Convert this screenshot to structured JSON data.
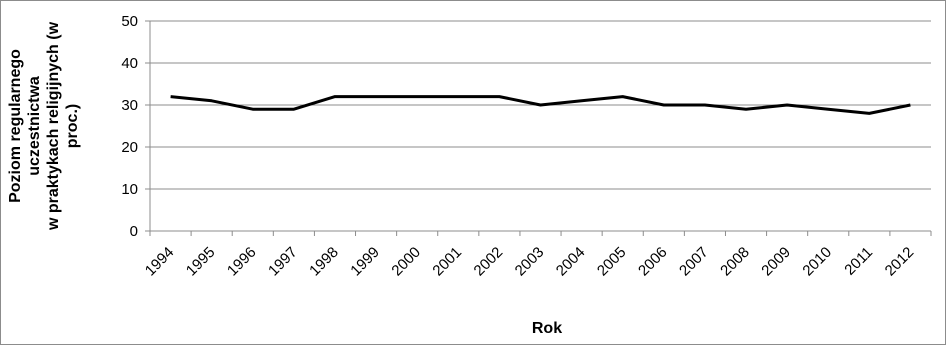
{
  "chart_data": {
    "type": "line",
    "xlabel": "Rok",
    "ylabel_lines": [
      "Poziom regularnego",
      "uczestnictwa",
      "w praktykach religijnych (w",
      "proc.)"
    ],
    "categories": [
      "1994",
      "1995",
      "1996",
      "1997",
      "1998",
      "1999",
      "2000",
      "2001",
      "2002",
      "2003",
      "2004",
      "2005",
      "2006",
      "2007",
      "2008",
      "2009",
      "2010",
      "2011",
      "2012"
    ],
    "series": [
      {
        "values": [
          32,
          31,
          29,
          29,
          32,
          32,
          32,
          32,
          32,
          30,
          31,
          32,
          30,
          30,
          29,
          30,
          29,
          28,
          30
        ]
      }
    ],
    "ylim": [
      0,
      50
    ],
    "yticks": [
      0,
      10,
      20,
      30,
      40,
      50
    ],
    "grid": true,
    "line_color": "#000000",
    "grid_color": "#8c8c8c"
  }
}
